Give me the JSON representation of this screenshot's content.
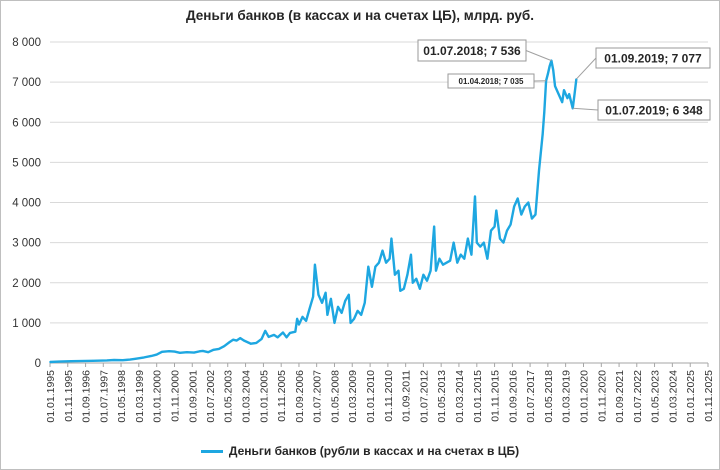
{
  "chart_data": {
    "type": "line",
    "title": "Деньги банков (в кассах и на счетах ЦБ), млрд. руб.",
    "ylim": [
      0,
      8000
    ],
    "yticks": [
      0,
      1000,
      2000,
      3000,
      4000,
      5000,
      6000,
      7000,
      8000
    ],
    "ytick_labels": [
      "0",
      "1 000",
      "2 000",
      "3 000",
      "4 000",
      "5 000",
      "6 000",
      "7 000",
      "8 000"
    ],
    "xlim": [
      "1995-01-01",
      "2025-11-01"
    ],
    "xtick_labels": [
      "01.01.1995",
      "01.11.1995",
      "01.09.1996",
      "01.07.1997",
      "01.05.1998",
      "01.03.1999",
      "01.01.2000",
      "01.11.2000",
      "01.09.2001",
      "01.07.2002",
      "01.05.2003",
      "01.03.2004",
      "01.01.2005",
      "01.11.2005",
      "01.09.2006",
      "01.07.2007",
      "01.05.2008",
      "01.03.2009",
      "01.01.2010",
      "01.11.2010",
      "01.09.2011",
      "01.07.2012",
      "01.05.2013",
      "01.03.2014",
      "01.01.2015",
      "01.11.2015",
      "01.09.2016",
      "01.07.2017",
      "01.05.2018",
      "01.03.2019",
      "01.01.2020",
      "01.11.2020",
      "01.09.2021",
      "01.07.2022",
      "01.05.2023",
      "01.03.2024",
      "01.01.2025",
      "01.11.2025"
    ],
    "grid": true,
    "legend_position": "bottom",
    "color": "#1ea7e1",
    "series": [
      {
        "name": "Деньги банков (рубли в кассах и на счетах в ЦБ)",
        "points": [
          [
            "1995-01-01",
            25
          ],
          [
            "1995-06-01",
            35
          ],
          [
            "1996-01-01",
            45
          ],
          [
            "1997-01-01",
            55
          ],
          [
            "1997-09-01",
            65
          ],
          [
            "1998-01-01",
            75
          ],
          [
            "1998-06-01",
            70
          ],
          [
            "1998-10-01",
            85
          ],
          [
            "1999-01-01",
            105
          ],
          [
            "1999-06-01",
            140
          ],
          [
            "1999-10-01",
            175
          ],
          [
            "2000-01-01",
            210
          ],
          [
            "2000-04-01",
            280
          ],
          [
            "2000-08-01",
            295
          ],
          [
            "2000-11-01",
            285
          ],
          [
            "2001-02-01",
            255
          ],
          [
            "2001-06-01",
            270
          ],
          [
            "2001-10-01",
            260
          ],
          [
            "2002-01-01",
            290
          ],
          [
            "2002-03-01",
            300
          ],
          [
            "2002-06-01",
            270
          ],
          [
            "2002-09-01",
            330
          ],
          [
            "2002-12-01",
            350
          ],
          [
            "2003-03-01",
            420
          ],
          [
            "2003-06-01",
            520
          ],
          [
            "2003-08-01",
            580
          ],
          [
            "2003-10-01",
            560
          ],
          [
            "2003-12-01",
            620
          ],
          [
            "2004-02-01",
            560
          ],
          [
            "2004-06-01",
            480
          ],
          [
            "2004-09-01",
            500
          ],
          [
            "2004-12-01",
            600
          ],
          [
            "2005-02-01",
            800
          ],
          [
            "2005-04-01",
            650
          ],
          [
            "2005-07-01",
            700
          ],
          [
            "2005-09-01",
            640
          ],
          [
            "2005-12-01",
            760
          ],
          [
            "2006-02-01",
            640
          ],
          [
            "2006-04-01",
            750
          ],
          [
            "2006-07-01",
            780
          ],
          [
            "2006-08-01",
            1100
          ],
          [
            "2006-09-01",
            960
          ],
          [
            "2006-11-01",
            1150
          ],
          [
            "2007-01-01",
            1050
          ],
          [
            "2007-03-01",
            1350
          ],
          [
            "2007-05-01",
            1650
          ],
          [
            "2007-06-01",
            2450
          ],
          [
            "2007-08-01",
            1700
          ],
          [
            "2007-10-01",
            1500
          ],
          [
            "2007-12-01",
            1750
          ],
          [
            "2008-01-01",
            1200
          ],
          [
            "2008-03-01",
            1600
          ],
          [
            "2008-05-01",
            1000
          ],
          [
            "2008-07-01",
            1400
          ],
          [
            "2008-09-01",
            1250
          ],
          [
            "2008-11-01",
            1550
          ],
          [
            "2009-01-01",
            1700
          ],
          [
            "2009-02-01",
            1000
          ],
          [
            "2009-04-01",
            1100
          ],
          [
            "2009-06-01",
            1300
          ],
          [
            "2009-08-01",
            1200
          ],
          [
            "2009-10-01",
            1500
          ],
          [
            "2009-12-01",
            2400
          ],
          [
            "2010-02-01",
            1900
          ],
          [
            "2010-04-01",
            2400
          ],
          [
            "2010-06-01",
            2500
          ],
          [
            "2010-08-01",
            2800
          ],
          [
            "2010-10-01",
            2500
          ],
          [
            "2010-12-01",
            2600
          ],
          [
            "2011-01-01",
            3100
          ],
          [
            "2011-03-01",
            2200
          ],
          [
            "2011-05-01",
            2300
          ],
          [
            "2011-06-01",
            1800
          ],
          [
            "2011-08-01",
            1850
          ],
          [
            "2011-10-01",
            2200
          ],
          [
            "2011-12-01",
            2700
          ],
          [
            "2012-01-01",
            2000
          ],
          [
            "2012-03-01",
            2100
          ],
          [
            "2012-05-01",
            1850
          ],
          [
            "2012-07-01",
            2200
          ],
          [
            "2012-09-01",
            2050
          ],
          [
            "2012-11-01",
            2300
          ],
          [
            "2013-01-01",
            3400
          ],
          [
            "2013-02-01",
            2300
          ],
          [
            "2013-04-01",
            2600
          ],
          [
            "2013-06-01",
            2450
          ],
          [
            "2013-08-01",
            2500
          ],
          [
            "2013-10-01",
            2550
          ],
          [
            "2013-12-01",
            3000
          ],
          [
            "2014-02-01",
            2500
          ],
          [
            "2014-04-01",
            2700
          ],
          [
            "2014-06-01",
            2600
          ],
          [
            "2014-08-01",
            3100
          ],
          [
            "2014-10-01",
            2700
          ],
          [
            "2014-12-01",
            4150
          ],
          [
            "2015-01-01",
            3000
          ],
          [
            "2015-03-01",
            2900
          ],
          [
            "2015-05-01",
            3000
          ],
          [
            "2015-07-01",
            2600
          ],
          [
            "2015-09-01",
            3300
          ],
          [
            "2015-11-01",
            3400
          ],
          [
            "2015-12-01",
            3800
          ],
          [
            "2016-02-01",
            3100
          ],
          [
            "2016-04-01",
            3000
          ],
          [
            "2016-06-01",
            3300
          ],
          [
            "2016-08-01",
            3450
          ],
          [
            "2016-10-01",
            3900
          ],
          [
            "2016-12-01",
            4100
          ],
          [
            "2017-02-01",
            3700
          ],
          [
            "2017-04-01",
            3900
          ],
          [
            "2017-06-01",
            4000
          ],
          [
            "2017-08-01",
            3600
          ],
          [
            "2017-10-01",
            3700
          ],
          [
            "2017-12-01",
            4800
          ],
          [
            "2018-02-01",
            5700
          ],
          [
            "2018-03-01",
            6250
          ],
          [
            "2018-04-01",
            7035
          ],
          [
            "2018-05-01",
            7200
          ],
          [
            "2018-06-01",
            7400
          ],
          [
            "2018-07-01",
            7536
          ],
          [
            "2018-08-01",
            7300
          ],
          [
            "2018-09-01",
            6900
          ],
          [
            "2018-11-01",
            6700
          ],
          [
            "2019-01-01",
            6500
          ],
          [
            "2019-02-01",
            6800
          ],
          [
            "2019-04-01",
            6600
          ],
          [
            "2019-05-01",
            6700
          ],
          [
            "2019-07-01",
            6348
          ],
          [
            "2019-08-01",
            6700
          ],
          [
            "2019-09-01",
            7077
          ]
        ]
      }
    ],
    "annotations": [
      {
        "date": "2018-07-01",
        "value": 7536,
        "label": "01.07.2018; 7 536",
        "size": "large"
      },
      {
        "date": "2018-04-01",
        "value": 7035,
        "label": "01.04.2018; 7 035",
        "size": "small"
      },
      {
        "date": "2019-09-01",
        "value": 7077,
        "label": "01.09.2019; 7 077",
        "size": "large"
      },
      {
        "date": "2019-07-01",
        "value": 6348,
        "label": "01.07.2019; 6 348",
        "size": "large"
      }
    ]
  }
}
